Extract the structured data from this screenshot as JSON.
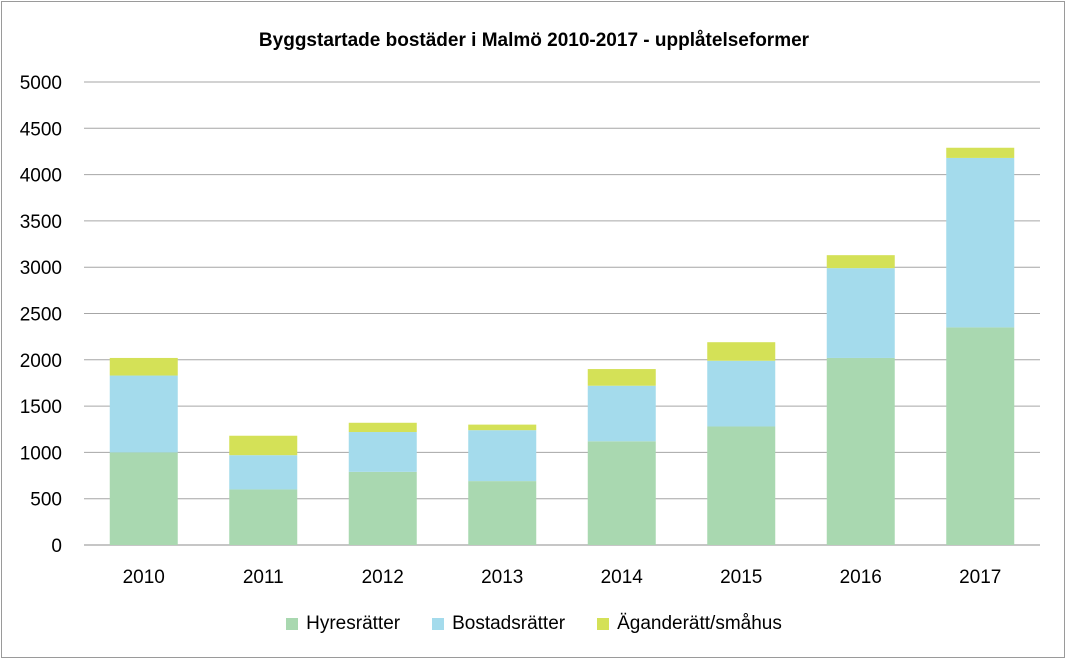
{
  "chart_data": {
    "type": "bar",
    "stacked": true,
    "title": "Byggstartade bostäder i Malmö 2010-2017 - upplåtelseformer",
    "xlabel": "",
    "ylabel": "",
    "categories": [
      "2010",
      "2011",
      "2012",
      "2013",
      "2014",
      "2015",
      "2016",
      "2017"
    ],
    "ylim": [
      0,
      5000
    ],
    "yticks": [
      "0",
      "500",
      "1000",
      "1500",
      "2000",
      "2500",
      "3000",
      "3500",
      "4000",
      "4500",
      "5000"
    ],
    "grid": true,
    "legend_position": "bottom",
    "series": [
      {
        "name": "Hyresrätter",
        "color": "#a9d8b0",
        "values": [
          1000,
          600,
          790,
          690,
          1120,
          1280,
          2020,
          2350
        ]
      },
      {
        "name": "Bostadsrätter",
        "color": "#a4dbec",
        "values": [
          830,
          370,
          430,
          550,
          600,
          710,
          970,
          1830
        ]
      },
      {
        "name": "Äganderätt/småhus",
        "color": "#d4e157",
        "values": [
          190,
          210,
          100,
          60,
          180,
          200,
          140,
          110
        ]
      }
    ]
  }
}
